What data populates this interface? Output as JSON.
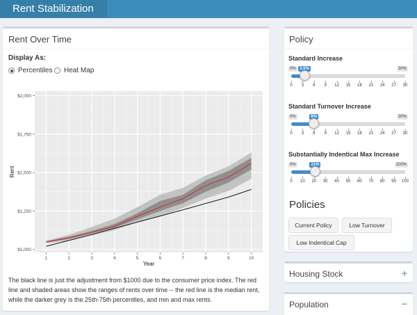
{
  "app": {
    "title": "Rent Stabilization"
  },
  "left_panel": {
    "title": "Rent Over Time",
    "display_label": "Display As:",
    "options": [
      {
        "label": "Percentiles",
        "selected": true
      },
      {
        "label": "Heat Map",
        "selected": false
      }
    ],
    "caption": "The black line is just the adjustment from $1000 due to the consumer price index. The red line and shaded areas show the ranges of rents over time -- the red line is the median rent, while the darker grey is the 25th-75th percentiles, and min and max rents."
  },
  "policy": {
    "title": "Policy",
    "sliders": [
      {
        "label": "Standard Increase",
        "min": "0%",
        "max": "30%",
        "value_label": "3.5%",
        "value": 3.5,
        "range_max": 30,
        "ticks": [
          "0",
          "3",
          "6",
          "9",
          "12",
          "15",
          "18",
          "21",
          "24",
          "27",
          "30"
        ]
      },
      {
        "label": "Standard Turnover Increase",
        "min": "0%",
        "max": "30%",
        "value_label": "6%",
        "value": 6,
        "range_max": 30,
        "ticks": [
          "0",
          "3",
          "6",
          "9",
          "12",
          "15",
          "18",
          "21",
          "24",
          "27",
          "30"
        ]
      },
      {
        "label": "Substantially Indentical Max Increase",
        "min": "0%",
        "max": "100%",
        "value_label": "21%",
        "value": 21,
        "range_max": 100,
        "ticks": [
          "0",
          "10",
          "20",
          "30",
          "40",
          "50",
          "60",
          "70",
          "80",
          "90",
          "100"
        ]
      }
    ],
    "policies_title": "Policies",
    "buttons": [
      "Current Policy",
      "Low Turnover",
      "Low Indentical Cap"
    ]
  },
  "housing": {
    "title": "Housing Stock",
    "toggle": "+"
  },
  "population": {
    "title": "Population",
    "toggle": "−"
  },
  "colors": {
    "header": "#3c8dbc",
    "brand": "#367fa9",
    "accent": "#428bca",
    "median": "#e31a1c"
  },
  "chart_data": {
    "type": "area",
    "xlabel": "Year",
    "ylabel": "Rent",
    "xlim": [
      0.5,
      10.5
    ],
    "ylim": [
      980,
      2030
    ],
    "x": [
      1,
      2,
      3,
      4,
      5,
      6,
      7,
      8,
      9,
      10
    ],
    "xticks": [
      1,
      2,
      3,
      4,
      5,
      6,
      7,
      8,
      9,
      10
    ],
    "yticks": [
      1000,
      1250,
      1500,
      1750,
      2000
    ],
    "ytick_labels": [
      "$1,000",
      "$1,250",
      "$1,500",
      "$1,750",
      "$2,000"
    ],
    "grid": true,
    "series": [
      {
        "role": "min-max band",
        "low": [
          1040,
          1055,
          1090,
          1125,
          1175,
          1215,
          1270,
          1330,
          1380,
          1460
        ],
        "high": [
          1055,
          1095,
          1145,
          1200,
          1275,
          1355,
          1400,
          1480,
          1540,
          1630
        ]
      },
      {
        "role": "25th-75th band",
        "low": [
          1045,
          1068,
          1105,
          1140,
          1195,
          1250,
          1300,
          1375,
          1435,
          1520
        ],
        "high": [
          1053,
          1082,
          1120,
          1165,
          1235,
          1315,
          1355,
          1450,
          1510,
          1595
        ]
      },
      {
        "role": "median",
        "values": [
          1048,
          1075,
          1110,
          1150,
          1215,
          1275,
          1330,
          1415,
          1470,
          1560
        ]
      },
      {
        "role": "cpi",
        "values": [
          1020,
          1058,
          1097,
          1137,
          1177,
          1217,
          1257,
          1299,
          1340,
          1390
        ]
      }
    ]
  }
}
